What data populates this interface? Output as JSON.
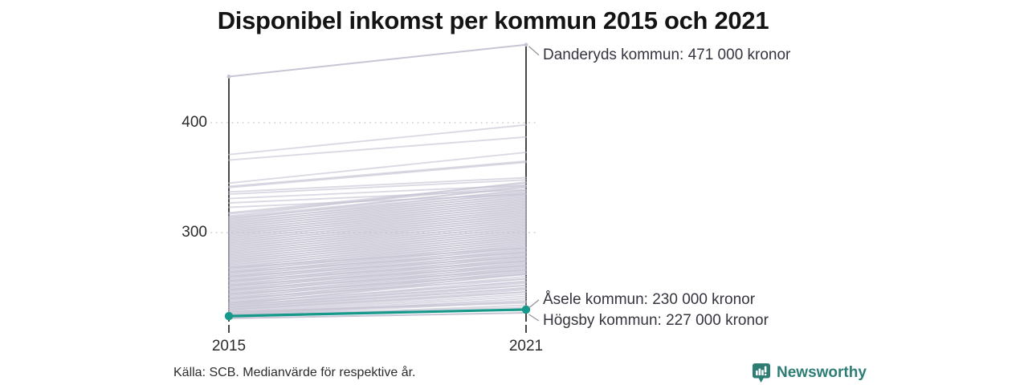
{
  "title": "Disponibel inkomst per kommun 2015 och 2021",
  "source": "Källa: SCB. Medianvärde för respektive år.",
  "brand": {
    "name": "Newsworthy",
    "icon": "newsworthy-speech-bubble-bar-chart-icon",
    "color": "#2e7d74"
  },
  "colors": {
    "background_line": "#c5c2d2",
    "highlight": "#16998a",
    "axis": "#1a1a1a",
    "grid": "#d8d5de",
    "leader": "#98959e",
    "annotation_text": "#35353f",
    "tick_text": "#2b2b2b",
    "title_text": "#141414"
  },
  "chart_data": {
    "type": "line",
    "subtype": "slope-chart",
    "x_categories": [
      "2015",
      "2021"
    ],
    "y_ticks": [
      {
        "label": "400",
        "value": 400
      },
      {
        "label": "300",
        "value": 300
      }
    ],
    "y_unit": "tusen kronor",
    "grid": "dotted-horizontal",
    "legend_position": "none",
    "annotations": [
      {
        "series": "Danderyds kommun",
        "year": "2021",
        "value": 471,
        "label": "Danderyds kommun: 471 000 kronor"
      },
      {
        "series": "Åsele kommun",
        "year": "2021",
        "value": 230,
        "label": "Åsele kommun: 230 000 kronor"
      },
      {
        "series": "Högsby kommun",
        "year": "2021",
        "value": 227,
        "label": "Högsby kommun: 227 000 kronor"
      }
    ],
    "highlighted_series": {
      "name": "Åsele kommun",
      "values": [
        224,
        230
      ]
    },
    "named_series": [
      {
        "name": "Danderyds kommun",
        "values": [
          442,
          471
        ],
        "markers": true
      },
      {
        "name": "Högsby kommun",
        "values": [
          222,
          227
        ],
        "markers": false
      }
    ],
    "background_series_estimated": [
      [
        371,
        398
      ],
      [
        366,
        387
      ],
      [
        345,
        373
      ],
      [
        342,
        365
      ],
      [
        341,
        364
      ],
      [
        337,
        350
      ],
      [
        335,
        348
      ],
      [
        331,
        343
      ],
      [
        327,
        339
      ],
      [
        323,
        335
      ],
      [
        318,
        345
      ],
      [
        317,
        343
      ],
      [
        315,
        346
      ],
      [
        314,
        341
      ],
      [
        313,
        338
      ],
      [
        312,
        342
      ],
      [
        311,
        336
      ],
      [
        310,
        339
      ],
      [
        309,
        334
      ],
      [
        308,
        337
      ],
      [
        307,
        332
      ],
      [
        306,
        335
      ],
      [
        305,
        330
      ],
      [
        304,
        333
      ],
      [
        303,
        328
      ],
      [
        302,
        331
      ],
      [
        301,
        326
      ],
      [
        300,
        329
      ],
      [
        299,
        324
      ],
      [
        298,
        327
      ],
      [
        297,
        322
      ],
      [
        296,
        325
      ],
      [
        295,
        320
      ],
      [
        294,
        323
      ],
      [
        293,
        318
      ],
      [
        292,
        321
      ],
      [
        291,
        316
      ],
      [
        290,
        319
      ],
      [
        289,
        314
      ],
      [
        288,
        317
      ],
      [
        287,
        312
      ],
      [
        286,
        315
      ],
      [
        285,
        310
      ],
      [
        284,
        313
      ],
      [
        283,
        308
      ],
      [
        282,
        311
      ],
      [
        281,
        306
      ],
      [
        280,
        309
      ],
      [
        279,
        304
      ],
      [
        278,
        307
      ],
      [
        277,
        302
      ],
      [
        276,
        305
      ],
      [
        275,
        300
      ],
      [
        274,
        303
      ],
      [
        273,
        298
      ],
      [
        272,
        301
      ],
      [
        271,
        296
      ],
      [
        270,
        299
      ],
      [
        269,
        294
      ],
      [
        268,
        297
      ],
      [
        267,
        292
      ],
      [
        266,
        295
      ],
      [
        265,
        290
      ],
      [
        264,
        293
      ],
      [
        263,
        288
      ],
      [
        262,
        291
      ],
      [
        261,
        286
      ],
      [
        260,
        289
      ],
      [
        259,
        284
      ],
      [
        258,
        287
      ],
      [
        257,
        282
      ],
      [
        256,
        285
      ],
      [
        255,
        280
      ],
      [
        254,
        283
      ],
      [
        253,
        278
      ],
      [
        252,
        281
      ],
      [
        251,
        276
      ],
      [
        250,
        279
      ],
      [
        249,
        274
      ],
      [
        248,
        277
      ],
      [
        247,
        272
      ],
      [
        246,
        275
      ],
      [
        245,
        270
      ],
      [
        244,
        273
      ],
      [
        243,
        268
      ],
      [
        242,
        271
      ],
      [
        241,
        266
      ],
      [
        240,
        269
      ],
      [
        239,
        264
      ],
      [
        238,
        267
      ],
      [
        237,
        262
      ],
      [
        236,
        265
      ],
      [
        235,
        260
      ],
      [
        234,
        263
      ],
      [
        233,
        258
      ],
      [
        232,
        256
      ],
      [
        231,
        254
      ],
      [
        230,
        252
      ],
      [
        229,
        250
      ],
      [
        228,
        248
      ],
      [
        227,
        246
      ],
      [
        226,
        244
      ],
      [
        225,
        242
      ],
      [
        224,
        240
      ],
      [
        226,
        238
      ],
      [
        228,
        236
      ],
      [
        230,
        246
      ],
      [
        232,
        249
      ],
      [
        234,
        252
      ],
      [
        236,
        255
      ],
      [
        240,
        258
      ],
      [
        244,
        262
      ],
      [
        248,
        266
      ],
      [
        252,
        270
      ],
      [
        256,
        274
      ],
      [
        260,
        278
      ],
      [
        264,
        282
      ],
      [
        268,
        286
      ],
      [
        223,
        234
      ],
      [
        224,
        237
      ],
      [
        225,
        232
      ]
    ]
  }
}
